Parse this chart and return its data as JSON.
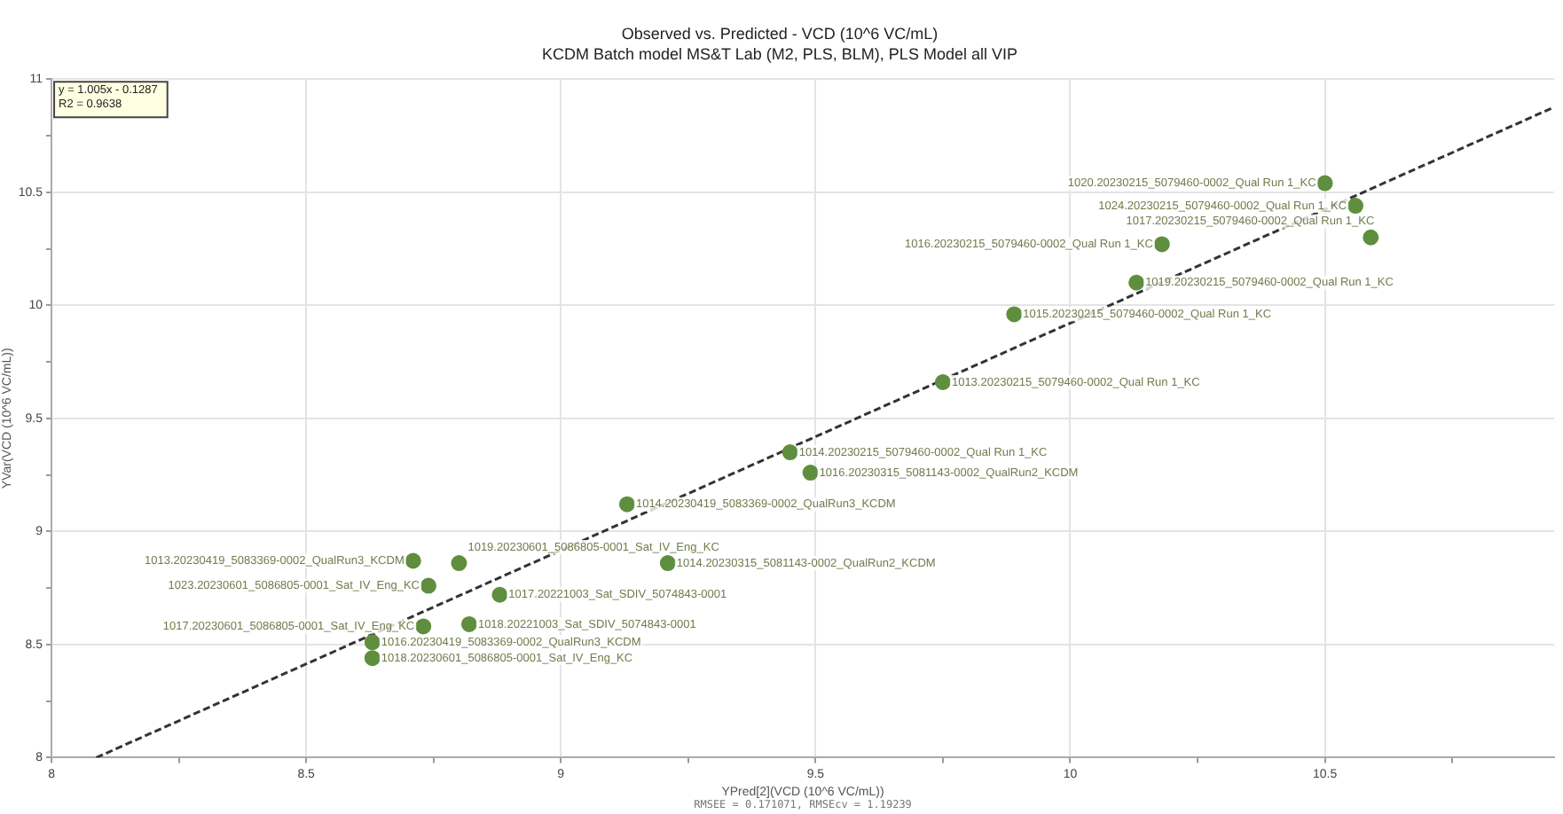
{
  "chart_data": {
    "type": "scatter",
    "title": "Observed vs. Predicted - VCD (10^6 VC/mL)",
    "subtitle": "KCDM Batch model MS&T Lab (M2, PLS, BLM), PLS Model all VIP",
    "xlabel": "YPred[2](VCD (10^6 VC/mL))",
    "ylabel": "YVar(VCD (10^6 VC/mL))",
    "xlim": [
      8,
      10.95
    ],
    "ylim": [
      8,
      11
    ],
    "xticks": [
      8,
      {
        "value": 8.25,
        "label": null
      },
      8.5,
      {
        "value": 8.75,
        "label": null
      },
      9,
      {
        "value": 9.25,
        "label": null
      },
      9.5,
      {
        "value": 9.75,
        "label": null
      },
      10,
      {
        "value": 10.25,
        "label": null
      },
      10.5,
      {
        "value": 10.75,
        "label": null
      }
    ],
    "yticks": [
      8,
      {
        "value": 8.25,
        "label": null
      },
      8.5,
      {
        "value": 8.75,
        "label": null
      },
      9,
      {
        "value": 9.25,
        "label": null
      },
      9.5,
      {
        "value": 9.75,
        "label": null
      },
      10,
      {
        "value": 10.25,
        "label": null
      },
      10.5,
      {
        "value": 10.75,
        "label": null
      },
      11
    ],
    "grid": true,
    "legend": false,
    "marker": "circle",
    "series": [
      {
        "type": "scatter",
        "color": "#5f8f3e",
        "x": [
          10.5,
          10.56,
          10.59,
          10.18,
          10.13,
          9.89,
          9.75,
          9.45,
          9.49,
          9.13,
          8.71,
          8.8,
          9.21,
          8.74,
          8.88,
          8.73,
          8.82,
          8.63,
          8.63
        ],
        "values": [
          10.54,
          10.44,
          10.3,
          10.27,
          10.1,
          9.96,
          9.66,
          9.35,
          9.26,
          9.12,
          8.87,
          8.86,
          8.86,
          8.76,
          8.72,
          8.58,
          8.59,
          8.51,
          8.44
        ]
      },
      {
        "type": "line",
        "color": "#333333",
        "line_style": "dashed",
        "marker": "none",
        "x": [
          8.088,
          10.95
        ],
        "values": [
          8.0,
          10.876
        ]
      }
    ],
    "annotations": [
      "y = 1.005x - 0.1287",
      "R2 = 0.9638",
      "RMSEE = 0.171071, RMSEcv = 1.19239",
      {
        "text": "1020.20230215_5079460-0002_Qual Run 1_KC",
        "x": 10.5,
        "y": 10.54
      },
      {
        "text": "1024.20230215_5079460-0002_Qual Run 1_KC",
        "x": 10.56,
        "y": 10.44
      },
      {
        "text": "1017.20230215_5079460-0002_Qual Run 1_KC",
        "x": 10.59,
        "y": 10.3
      },
      {
        "text": "1016.20230215_5079460-0002_Qual Run 1_KC",
        "x": 10.18,
        "y": 10.27
      },
      {
        "text": "1019.20230215_5079460-0002_Qual Run 1_KC",
        "x": 10.13,
        "y": 10.1
      },
      {
        "text": "1015.20230215_5079460-0002_Qual Run 1_KC",
        "x": 9.89,
        "y": 9.96
      },
      {
        "text": "1013.20230215_5079460-0002_Qual Run 1_KC",
        "x": 9.75,
        "y": 9.66
      },
      {
        "text": "1014.20230215_5079460-0002_Qual Run 1_KC",
        "x": 9.45,
        "y": 9.35
      },
      {
        "text": "1016.20230315_5081143-0002_QualRun2_KCDM",
        "x": 9.49,
        "y": 9.26
      },
      {
        "text": "1014.20230419_5083369-0002_QualRun3_KCDM",
        "x": 9.13,
        "y": 9.12
      },
      {
        "text": "1013.20230419_5083369-0002_QualRun3_KCDM",
        "x": 8.71,
        "y": 8.87
      },
      {
        "text": "1019.20230601_5086805-0001_Sat_IV_Eng_KC",
        "x": 8.8,
        "y": 8.86
      },
      {
        "text": "1014.20230315_5081143-0002_QualRun2_KCDM",
        "x": 9.21,
        "y": 8.86
      },
      {
        "text": "1023.20230601_5086805-0001_Sat_IV_Eng_KC",
        "x": 8.74,
        "y": 8.76
      },
      {
        "text": "1017.20221003_Sat_SDIV_5074843-0001",
        "x": 8.88,
        "y": 8.72
      },
      {
        "text": "1017.20230601_5086805-0001_Sat_IV_Eng_KC",
        "x": 8.73,
        "y": 8.58
      },
      {
        "text": "1018.20221003_Sat_SDIV_5074843-0001",
        "x": 8.82,
        "y": 8.59
      },
      {
        "text": "1016.20230419_5083369-0002_QualRun3_KCDM",
        "x": 8.63,
        "y": 8.51
      },
      {
        "text": "1018.20230601_5086805-0001_Sat_IV_Eng_KC",
        "x": 8.63,
        "y": 8.44
      }
    ]
  }
}
